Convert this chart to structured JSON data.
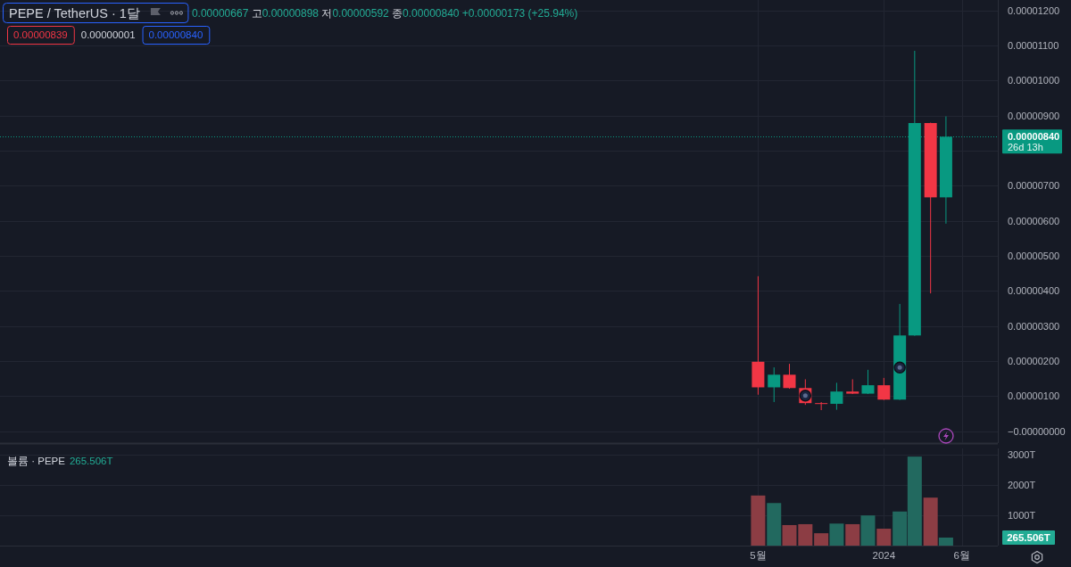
{
  "chart_data": [
    {
      "type": "candlestick",
      "title": "PEPE / TetherUS · 1달",
      "subtitle": "0.00000667 고0.00000898 저0.00000592 종0.00000840 +0.00000173 (+25.94%)",
      "x": [
        "2023-05",
        "2023-06",
        "2023-07",
        "2023-08",
        "2023-09",
        "2023-10",
        "2023-11",
        "2023-12",
        "2024-01",
        "2024-02",
        "2024-03",
        "2024-04",
        "2024-05"
      ],
      "ohlc": [
        [
          1.98e-06,
          4.42e-06,
          1.04e-06,
          1.25e-06
        ],
        [
          1.25e-06,
          1.82e-06,
          8.3e-07,
          1.61e-06
        ],
        [
          1.61e-06,
          1.92e-06,
          1.21e-06,
          1.23e-06
        ],
        [
          1.23e-06,
          1.48e-06,
          7.5e-07,
          8e-07
        ],
        [
          8e-07,
          8.3e-07,
          6e-07,
          7.8e-07
        ],
        [
          7.8e-07,
          1.38e-06,
          6.1e-07,
          1.13e-06
        ],
        [
          1.13e-06,
          1.48e-06,
          1.06e-06,
          1.07e-06
        ],
        [
          1.07e-06,
          1.75e-06,
          1.06e-06,
          1.31e-06
        ],
        [
          1.31e-06,
          1.52e-06,
          8.9e-07,
          9e-07
        ],
        [
          9e-07,
          3.63e-06,
          8.9e-07,
          2.73e-06
        ],
        [
          2.73e-06,
          1.085e-05,
          2.72e-06,
          8.79e-06
        ],
        [
          8.79e-06,
          8.8e-06,
          3.93e-06,
          6.67e-06
        ],
        [
          6.67e-06,
          8.98e-06,
          5.92e-06,
          8.4e-06
        ]
      ],
      "colors": [
        "#f23645",
        "#089981",
        "#f23645",
        "#f23645",
        "#f23645",
        "#089981",
        "#f23645",
        "#089981",
        "#f23645",
        "#089981",
        "#089981",
        "#f23645",
        "#089981"
      ],
      "xlim": [
        "2019-04-15",
        "2024-08-10"
      ],
      "xticks": [
        {
          "value": "2023-05",
          "label": null
        },
        {
          "value": "2024-01",
          "label": null
        },
        {
          "value": "2024-06",
          "label": null
        }
      ],
      "ylim": [
        -3.4e-07,
        1.23e-05
      ],
      "yticks": [
        {
          "value": 0,
          "label": "−0.00000000"
        },
        {
          "value": 1e-06,
          "label": "0.00000100"
        },
        {
          "value": 2e-06,
          "label": "0.00000200"
        },
        {
          "value": 3e-06,
          "label": "0.00000300"
        },
        {
          "value": 4e-06,
          "label": "0.00000400"
        },
        {
          "value": 5e-06,
          "label": "0.00000500"
        },
        {
          "value": 6e-06,
          "label": "0.00000600"
        },
        {
          "value": 7e-06,
          "label": "0.00000700"
        },
        {
          "value": 8e-06,
          "label": null
        },
        {
          "value": 9e-06,
          "label": "0.00000900"
        },
        {
          "value": 1e-05,
          "label": "0.00001000"
        },
        {
          "value": 1.1e-05,
          "label": "0.00001100"
        },
        {
          "value": 1.2e-05,
          "label": "0.00001200"
        }
      ],
      "grid": true,
      "tick_labels": "y",
      "ref_lines": [
        {
          "axis": "y",
          "value": 8.4e-06,
          "label": "0.00000840",
          "color": "#089981",
          "line_style": "dotted"
        }
      ],
      "annotations": [
        "0.00000839",
        "0.00000001",
        "0.00000840",
        "26d 13h"
      ]
    },
    {
      "type": "bar",
      "title": "볼륨 · PEPE",
      "x": [
        "2023-05",
        "2023-06",
        "2023-07",
        "2023-08",
        "2023-09",
        "2023-10",
        "2023-11",
        "2023-12",
        "2024-01",
        "2024-02",
        "2024-03",
        "2024-04",
        "2024-05"
      ],
      "values": [
        1660,
        1410,
        680,
        710,
        410,
        730,
        710,
        1000,
        560,
        1130,
        2950,
        1590,
        265.506
      ],
      "colors": [
        "#8c3d44",
        "#22695f",
        "#8c3d44",
        "#8c3d44",
        "#8c3d44",
        "#22695f",
        "#8c3d44",
        "#22695f",
        "#8c3d44",
        "#22695f",
        "#22695f",
        "#8c3d44",
        "#22695f"
      ],
      "xlim": [
        "2019-04-15",
        "2024-08-10"
      ],
      "xticks": [
        {
          "value": "2023-05",
          "label": "5월"
        },
        {
          "value": "2024-01",
          "label": "2024"
        },
        {
          "value": "2024-06",
          "label": "6월"
        }
      ],
      "ylim": [
        0,
        3220
      ],
      "yticks": [
        {
          "value": 1000,
          "label": "1000T"
        },
        {
          "value": 2000,
          "label": "2000T"
        },
        {
          "value": 3000,
          "label": "3000T"
        }
      ],
      "grid": true,
      "annotations": [
        "265.506T",
        "265.506T"
      ]
    }
  ]
}
